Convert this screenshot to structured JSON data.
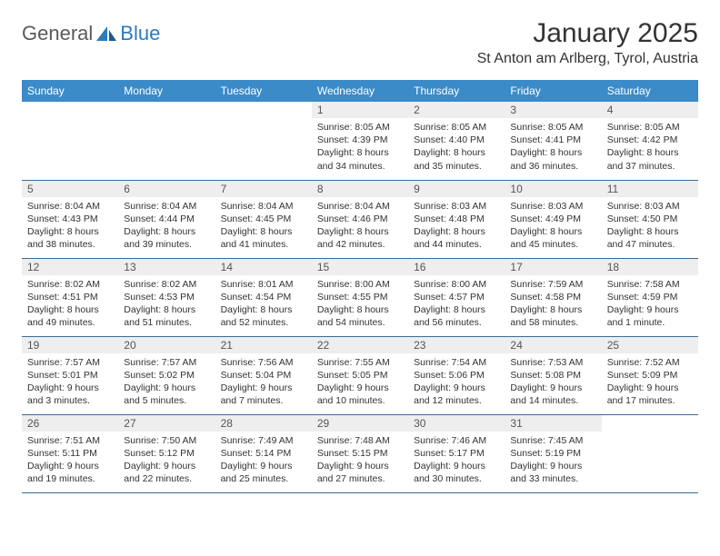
{
  "logo": {
    "part1": "General",
    "part2": "Blue"
  },
  "title": "January 2025",
  "location": "St Anton am Arlberg, Tyrol, Austria",
  "colors": {
    "header_bg": "#3b8bc8",
    "header_text": "#ffffff",
    "daynum_bg": "#eeeeee",
    "border": "#3b6b93",
    "logo_blue": "#2b7bbd",
    "logo_gray": "#5a5a5a",
    "body_text": "#333333"
  },
  "weekdays": [
    "Sunday",
    "Monday",
    "Tuesday",
    "Wednesday",
    "Thursday",
    "Friday",
    "Saturday"
  ],
  "weeks": [
    [
      {
        "n": "",
        "sr": "",
        "ss": "",
        "d1": "",
        "d2": ""
      },
      {
        "n": "",
        "sr": "",
        "ss": "",
        "d1": "",
        "d2": ""
      },
      {
        "n": "",
        "sr": "",
        "ss": "",
        "d1": "",
        "d2": ""
      },
      {
        "n": "1",
        "sr": "Sunrise: 8:05 AM",
        "ss": "Sunset: 4:39 PM",
        "d1": "Daylight: 8 hours",
        "d2": "and 34 minutes."
      },
      {
        "n": "2",
        "sr": "Sunrise: 8:05 AM",
        "ss": "Sunset: 4:40 PM",
        "d1": "Daylight: 8 hours",
        "d2": "and 35 minutes."
      },
      {
        "n": "3",
        "sr": "Sunrise: 8:05 AM",
        "ss": "Sunset: 4:41 PM",
        "d1": "Daylight: 8 hours",
        "d2": "and 36 minutes."
      },
      {
        "n": "4",
        "sr": "Sunrise: 8:05 AM",
        "ss": "Sunset: 4:42 PM",
        "d1": "Daylight: 8 hours",
        "d2": "and 37 minutes."
      }
    ],
    [
      {
        "n": "5",
        "sr": "Sunrise: 8:04 AM",
        "ss": "Sunset: 4:43 PM",
        "d1": "Daylight: 8 hours",
        "d2": "and 38 minutes."
      },
      {
        "n": "6",
        "sr": "Sunrise: 8:04 AM",
        "ss": "Sunset: 4:44 PM",
        "d1": "Daylight: 8 hours",
        "d2": "and 39 minutes."
      },
      {
        "n": "7",
        "sr": "Sunrise: 8:04 AM",
        "ss": "Sunset: 4:45 PM",
        "d1": "Daylight: 8 hours",
        "d2": "and 41 minutes."
      },
      {
        "n": "8",
        "sr": "Sunrise: 8:04 AM",
        "ss": "Sunset: 4:46 PM",
        "d1": "Daylight: 8 hours",
        "d2": "and 42 minutes."
      },
      {
        "n": "9",
        "sr": "Sunrise: 8:03 AM",
        "ss": "Sunset: 4:48 PM",
        "d1": "Daylight: 8 hours",
        "d2": "and 44 minutes."
      },
      {
        "n": "10",
        "sr": "Sunrise: 8:03 AM",
        "ss": "Sunset: 4:49 PM",
        "d1": "Daylight: 8 hours",
        "d2": "and 45 minutes."
      },
      {
        "n": "11",
        "sr": "Sunrise: 8:03 AM",
        "ss": "Sunset: 4:50 PM",
        "d1": "Daylight: 8 hours",
        "d2": "and 47 minutes."
      }
    ],
    [
      {
        "n": "12",
        "sr": "Sunrise: 8:02 AM",
        "ss": "Sunset: 4:51 PM",
        "d1": "Daylight: 8 hours",
        "d2": "and 49 minutes."
      },
      {
        "n": "13",
        "sr": "Sunrise: 8:02 AM",
        "ss": "Sunset: 4:53 PM",
        "d1": "Daylight: 8 hours",
        "d2": "and 51 minutes."
      },
      {
        "n": "14",
        "sr": "Sunrise: 8:01 AM",
        "ss": "Sunset: 4:54 PM",
        "d1": "Daylight: 8 hours",
        "d2": "and 52 minutes."
      },
      {
        "n": "15",
        "sr": "Sunrise: 8:00 AM",
        "ss": "Sunset: 4:55 PM",
        "d1": "Daylight: 8 hours",
        "d2": "and 54 minutes."
      },
      {
        "n": "16",
        "sr": "Sunrise: 8:00 AM",
        "ss": "Sunset: 4:57 PM",
        "d1": "Daylight: 8 hours",
        "d2": "and 56 minutes."
      },
      {
        "n": "17",
        "sr": "Sunrise: 7:59 AM",
        "ss": "Sunset: 4:58 PM",
        "d1": "Daylight: 8 hours",
        "d2": "and 58 minutes."
      },
      {
        "n": "18",
        "sr": "Sunrise: 7:58 AM",
        "ss": "Sunset: 4:59 PM",
        "d1": "Daylight: 9 hours",
        "d2": "and 1 minute."
      }
    ],
    [
      {
        "n": "19",
        "sr": "Sunrise: 7:57 AM",
        "ss": "Sunset: 5:01 PM",
        "d1": "Daylight: 9 hours",
        "d2": "and 3 minutes."
      },
      {
        "n": "20",
        "sr": "Sunrise: 7:57 AM",
        "ss": "Sunset: 5:02 PM",
        "d1": "Daylight: 9 hours",
        "d2": "and 5 minutes."
      },
      {
        "n": "21",
        "sr": "Sunrise: 7:56 AM",
        "ss": "Sunset: 5:04 PM",
        "d1": "Daylight: 9 hours",
        "d2": "and 7 minutes."
      },
      {
        "n": "22",
        "sr": "Sunrise: 7:55 AM",
        "ss": "Sunset: 5:05 PM",
        "d1": "Daylight: 9 hours",
        "d2": "and 10 minutes."
      },
      {
        "n": "23",
        "sr": "Sunrise: 7:54 AM",
        "ss": "Sunset: 5:06 PM",
        "d1": "Daylight: 9 hours",
        "d2": "and 12 minutes."
      },
      {
        "n": "24",
        "sr": "Sunrise: 7:53 AM",
        "ss": "Sunset: 5:08 PM",
        "d1": "Daylight: 9 hours",
        "d2": "and 14 minutes."
      },
      {
        "n": "25",
        "sr": "Sunrise: 7:52 AM",
        "ss": "Sunset: 5:09 PM",
        "d1": "Daylight: 9 hours",
        "d2": "and 17 minutes."
      }
    ],
    [
      {
        "n": "26",
        "sr": "Sunrise: 7:51 AM",
        "ss": "Sunset: 5:11 PM",
        "d1": "Daylight: 9 hours",
        "d2": "and 19 minutes."
      },
      {
        "n": "27",
        "sr": "Sunrise: 7:50 AM",
        "ss": "Sunset: 5:12 PM",
        "d1": "Daylight: 9 hours",
        "d2": "and 22 minutes."
      },
      {
        "n": "28",
        "sr": "Sunrise: 7:49 AM",
        "ss": "Sunset: 5:14 PM",
        "d1": "Daylight: 9 hours",
        "d2": "and 25 minutes."
      },
      {
        "n": "29",
        "sr": "Sunrise: 7:48 AM",
        "ss": "Sunset: 5:15 PM",
        "d1": "Daylight: 9 hours",
        "d2": "and 27 minutes."
      },
      {
        "n": "30",
        "sr": "Sunrise: 7:46 AM",
        "ss": "Sunset: 5:17 PM",
        "d1": "Daylight: 9 hours",
        "d2": "and 30 minutes."
      },
      {
        "n": "31",
        "sr": "Sunrise: 7:45 AM",
        "ss": "Sunset: 5:19 PM",
        "d1": "Daylight: 9 hours",
        "d2": "and 33 minutes."
      },
      {
        "n": "",
        "sr": "",
        "ss": "",
        "d1": "",
        "d2": ""
      }
    ]
  ]
}
